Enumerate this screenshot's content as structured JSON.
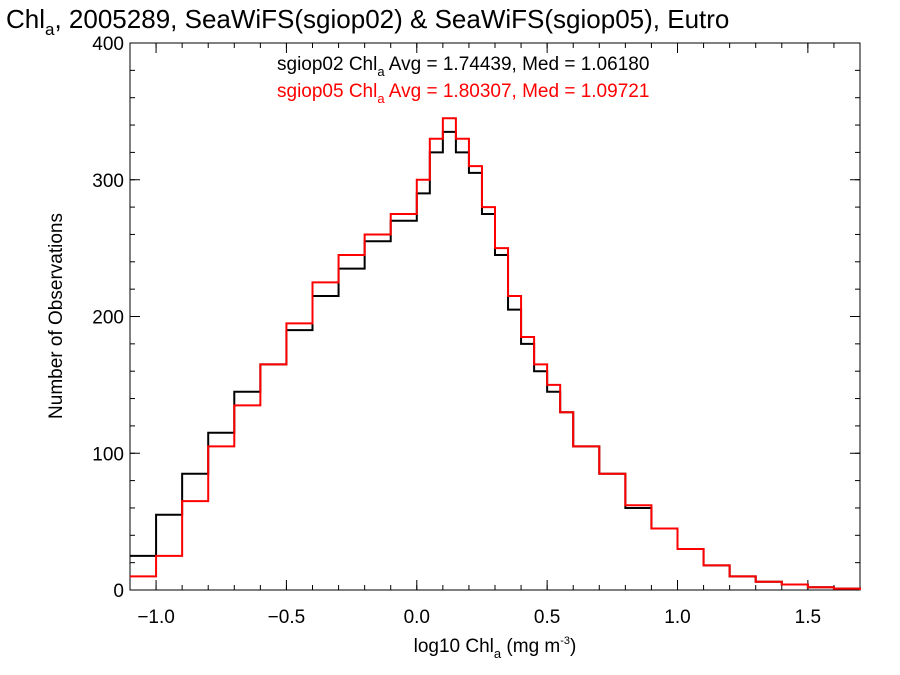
{
  "chart_data": {
    "type": "line",
    "title": "Chla, 2005289, SeaWiFS(sgiop02) & SeaWiFS(sgiop05), Eutro",
    "title_parts": {
      "prefix": "Chl",
      "sub": "a",
      "suffix": ", 2005289, SeaWiFS(sgiop02) & SeaWiFS(sgiop05), Eutro"
    },
    "xlabel": "log10 Chla (mg m-3)",
    "xlabel_parts": {
      "prefix": "log10 Chl",
      "sub": "a",
      "middle": " (mg m",
      "sup": "-3",
      "suffix": ")"
    },
    "ylabel": "Number of Observations",
    "xlim": [
      -1.1,
      1.7
    ],
    "ylim": [
      0,
      400
    ],
    "xticks": [
      -1.0,
      -0.5,
      0.0,
      0.5,
      1.0,
      1.5
    ],
    "xtick_labels": [
      "−1.0",
      "−0.5",
      "0.0",
      "0.5",
      "1.0",
      "1.5"
    ],
    "yticks": [
      0,
      100,
      200,
      300,
      400
    ],
    "ytick_labels": [
      "0",
      "100",
      "200",
      "300",
      "400"
    ],
    "grid": false,
    "step": true,
    "annotations": [
      {
        "color": "#000000",
        "prefix": "sgiop02 Chl",
        "sub": "a",
        "suffix": " Avg = 1.74439, Med = 1.06180"
      },
      {
        "color": "#ff0000",
        "prefix": "sgiop05 Chl",
        "sub": "a",
        "suffix": " Avg = 1.80307, Med = 1.09721"
      }
    ],
    "series": [
      {
        "color": "#000000",
        "x": [
          -1.1,
          -1.0,
          -0.9,
          -0.8,
          -0.7,
          -0.6,
          -0.5,
          -0.4,
          -0.3,
          -0.2,
          -0.1,
          0.0,
          0.05,
          0.1,
          0.15,
          0.2,
          0.25,
          0.3,
          0.35,
          0.4,
          0.45,
          0.5,
          0.55,
          0.6,
          0.7,
          0.8,
          0.9,
          1.0,
          1.1,
          1.2,
          1.3,
          1.4,
          1.5,
          1.6,
          1.7
        ],
        "y": [
          25,
          55,
          85,
          115,
          145,
          165,
          190,
          215,
          235,
          255,
          270,
          290,
          320,
          335,
          320,
          305,
          275,
          245,
          205,
          180,
          160,
          145,
          130,
          105,
          85,
          60,
          45,
          30,
          18,
          10,
          6,
          4,
          2,
          1,
          0
        ]
      },
      {
        "color": "#ff0000",
        "x": [
          -1.1,
          -1.0,
          -0.9,
          -0.8,
          -0.7,
          -0.6,
          -0.5,
          -0.4,
          -0.3,
          -0.2,
          -0.1,
          0.0,
          0.05,
          0.1,
          0.15,
          0.2,
          0.25,
          0.3,
          0.35,
          0.4,
          0.45,
          0.5,
          0.55,
          0.6,
          0.7,
          0.8,
          0.9,
          1.0,
          1.1,
          1.2,
          1.3,
          1.4,
          1.5,
          1.6,
          1.7
        ],
        "y": [
          10,
          25,
          65,
          105,
          135,
          165,
          195,
          225,
          245,
          260,
          275,
          300,
          330,
          345,
          330,
          310,
          280,
          250,
          215,
          185,
          165,
          150,
          130,
          105,
          85,
          62,
          45,
          30,
          18,
          10,
          6,
          4,
          2,
          1,
          0
        ]
      }
    ]
  }
}
